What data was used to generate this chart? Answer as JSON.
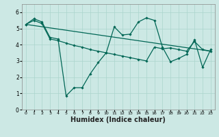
{
  "background_color": "#cce8e4",
  "grid_color": "#aad4cc",
  "line_color": "#006655",
  "xlabel": "Humidex (Indice chaleur)",
  "xlabel_fontsize": 7,
  "ylim": [
    0,
    6.5
  ],
  "xlim": [
    -0.5,
    23.5
  ],
  "yticks": [
    0,
    1,
    2,
    3,
    4,
    5,
    6
  ],
  "xticks": [
    0,
    1,
    2,
    3,
    4,
    5,
    6,
    7,
    8,
    9,
    10,
    11,
    12,
    13,
    14,
    15,
    16,
    17,
    18,
    19,
    20,
    21,
    22,
    23
  ],
  "line1_x": [
    0,
    1,
    2,
    3,
    4,
    5,
    6,
    7,
    8,
    9,
    10,
    11,
    12,
    13,
    14,
    15,
    16,
    17,
    18,
    19,
    20,
    21,
    22,
    23
  ],
  "line1_y": [
    5.25,
    5.6,
    5.4,
    4.45,
    4.35,
    0.85,
    1.35,
    1.35,
    2.2,
    2.9,
    3.5,
    5.1,
    4.6,
    4.65,
    5.4,
    5.65,
    5.5,
    3.85,
    2.95,
    3.15,
    3.4,
    4.3,
    2.6,
    3.7
  ],
  "line2_x": [
    0,
    1,
    2,
    3,
    4,
    5,
    6,
    7,
    8,
    9,
    10,
    11,
    12,
    13,
    14,
    15,
    16,
    17,
    18,
    19,
    20,
    21,
    22,
    23
  ],
  "line2_y": [
    5.25,
    5.5,
    5.3,
    4.35,
    4.25,
    4.1,
    3.95,
    3.85,
    3.7,
    3.6,
    3.5,
    3.4,
    3.3,
    3.2,
    3.1,
    3.0,
    3.85,
    3.75,
    3.8,
    3.7,
    3.6,
    4.2,
    3.7,
    3.6
  ],
  "line3_x": [
    0,
    23
  ],
  "line3_y": [
    5.25,
    3.6
  ]
}
